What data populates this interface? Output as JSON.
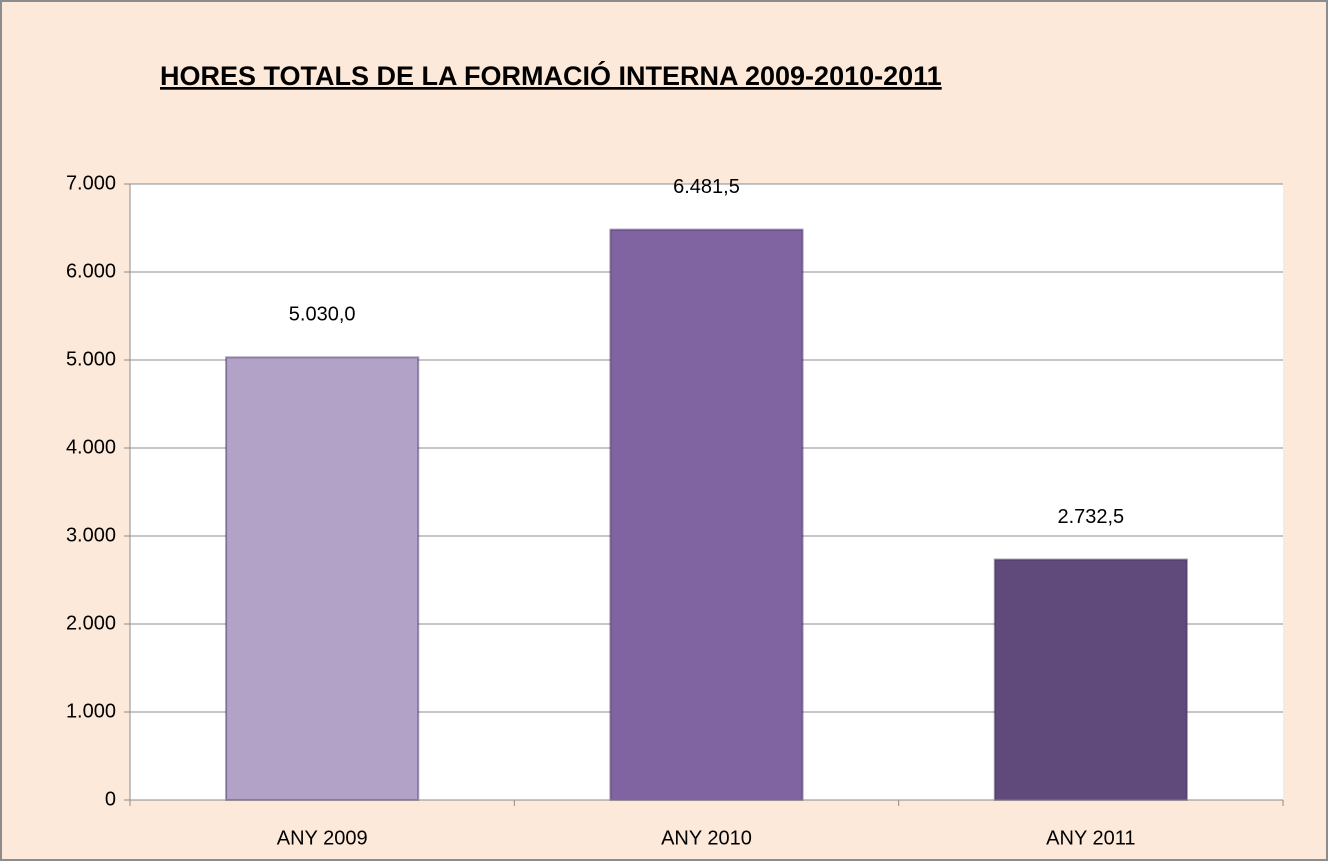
{
  "chart_data": {
    "type": "bar",
    "title": "HORES TOTALS DE LA FORMACIÓ INTERNA 2009-2010-2011",
    "categories": [
      "ANY 2009",
      "ANY 2010",
      "ANY 2011"
    ],
    "values": [
      5030.0,
      6481.5,
      2732.5
    ],
    "value_labels": [
      "5.030,0",
      "6.481,5",
      "2.732,5"
    ],
    "colors": [
      "#b3a2c7",
      "#8064a2",
      "#604a7b"
    ],
    "ylim": [
      0,
      7000
    ],
    "yticks": [
      0,
      {
        "value": 1000,
        "label": "1.000"
      },
      {
        "value": 2000,
        "label": "2.000"
      },
      {
        "value": 3000,
        "label": "3.000"
      },
      {
        "value": 4000,
        "label": "4.000"
      },
      {
        "value": 5000,
        "label": "5.000"
      },
      {
        "value": 6000,
        "label": "6.000"
      },
      {
        "value": 7000,
        "label": "7.000"
      }
    ],
    "grid": true
  }
}
